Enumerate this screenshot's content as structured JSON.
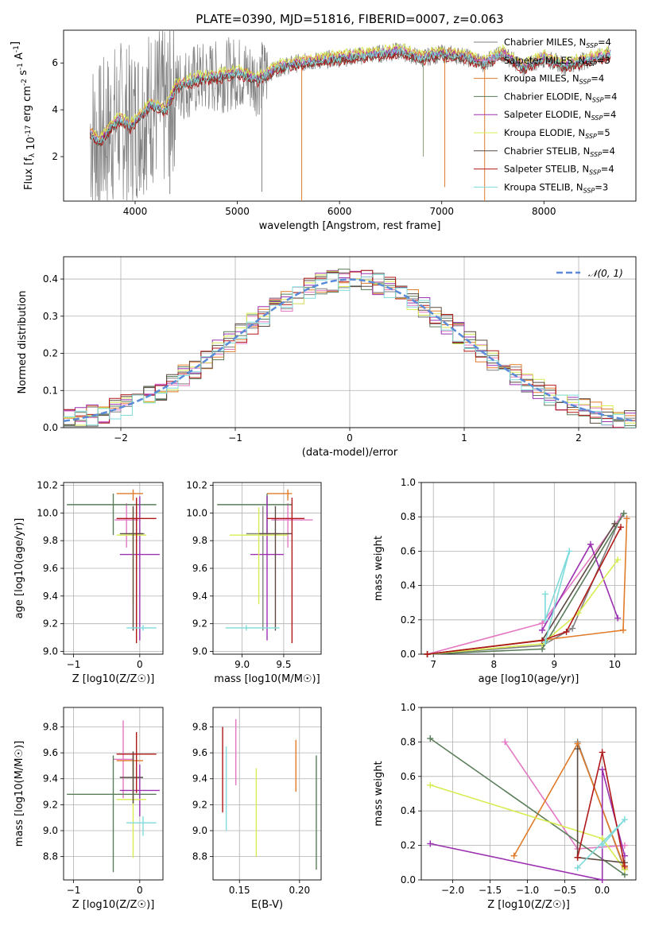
{
  "figure": {
    "title": "PLATE=0390, MJD=51816, FIBERID=0007, z=0.063"
  },
  "colors": {
    "Chabrier MILES": "#808080",
    "Salpeter MILES": "#e377c2",
    "Kroupa MILES": "#e07b2a",
    "Chabrier ELODIE": "#5a7d5a",
    "Salpeter ELODIE": "#9b30b0",
    "Kroupa ELODIE": "#d8ec52",
    "Chabrier STELIB": "#5d4a42",
    "Salpeter STELIB": "#b01818",
    "Kroupa STELIB": "#7fdada",
    "normal": "#5a8ad8"
  },
  "chart_data": [
    {
      "type": "line",
      "panel": "spectrum",
      "xlabel": "wavelength [Angstrom, rest frame]",
      "ylabel": "Flux [f_λ 10^-17 erg cm^-2 s^-1 A^-1]",
      "xlim": [
        3300,
        8900
      ],
      "ylim": [
        0.1,
        7.4
      ],
      "xticks": [
        "4000",
        "5000",
        "6000",
        "7000",
        "8000"
      ],
      "yticks": [
        "2",
        "4",
        "6"
      ],
      "legend_placement": "right",
      "legend": [
        {
          "name": "Chabrier MILES",
          "n": "4"
        },
        {
          "name": "Salpeter MILES",
          "n": "3"
        },
        {
          "name": "Kroupa MILES",
          "n": "4"
        },
        {
          "name": "Chabrier ELODIE",
          "n": "4"
        },
        {
          "name": "Salpeter ELODIE",
          "n": "4"
        },
        {
          "name": "Kroupa ELODIE",
          "n": "5"
        },
        {
          "name": "Chabrier STELIB",
          "n": "4"
        },
        {
          "name": "Salpeter STELIB",
          "n": "4"
        },
        {
          "name": "Kroupa STELIB",
          "n": "3"
        }
      ],
      "model_continuum": {
        "x": [
          3560,
          3650,
          3750,
          3850,
          3950,
          4050,
          4150,
          4300,
          4400,
          4600,
          4800,
          5000,
          5200,
          5400,
          5600,
          5800,
          6000,
          6200,
          6400,
          6600,
          6800,
          7000,
          7200,
          7400,
          7600,
          7800,
          8000,
          8200,
          8400,
          8500,
          8600,
          8650
        ],
        "y": [
          3.0,
          2.6,
          3.2,
          3.6,
          3.3,
          3.7,
          4.2,
          4.0,
          5.0,
          5.3,
          5.4,
          5.6,
          5.3,
          5.8,
          6.0,
          6.1,
          6.2,
          6.3,
          6.4,
          6.5,
          6.2,
          6.4,
          6.3,
          6.0,
          6.4,
          5.8,
          6.2,
          5.9,
          6.1,
          6.2,
          6.3,
          6.4
        ]
      },
      "data_spikes": {
        "x": [
          4340,
          5240,
          5630,
          6820,
          7030,
          7420
        ],
        "y": [
          0.4,
          0.5,
          0.0,
          2.0,
          0.7,
          0.0
        ]
      }
    },
    {
      "type": "step",
      "panel": "residual histogram",
      "xlabel": "(data-model)/error",
      "ylabel": "Normed distribution",
      "xlim": [
        -2.5,
        2.5
      ],
      "ylim": [
        0,
        0.46
      ],
      "xticks": [
        "−2",
        "−1",
        "0",
        "1",
        "2"
      ],
      "yticks": [
        "0.0",
        "0.1",
        "0.2",
        "0.3",
        "0.4"
      ],
      "legend": [
        "𝒩(0, 1)"
      ],
      "bin_width": 0.1
    },
    {
      "type": "scatter",
      "panel": "age vs Z",
      "xlabel": "Z [log10(Z/Z☉)]",
      "ylabel": "age [log10(age/yr)]",
      "xlim": [
        -1.15,
        0.35
      ],
      "ylim": [
        8.98,
        10.22
      ],
      "xticks": [
        "−1",
        "0"
      ],
      "yticks": [
        "9.0",
        "9.2",
        "9.4",
        "9.6",
        "9.8",
        "10.0",
        "10.2"
      ],
      "points": [
        {
          "model": "Chabrier MILES",
          "x": -0.05,
          "y": 9.85,
          "xerr": [
            0.12,
            0.12
          ],
          "yerr": [
            0.7,
            0.2
          ]
        },
        {
          "model": "Salpeter MILES",
          "x": -0.2,
          "y": 9.95,
          "xerr": [
            0.18,
            0.18
          ],
          "yerr": [
            0.2,
            0.12
          ]
        },
        {
          "model": "Kroupa MILES",
          "x": -0.1,
          "y": 10.14,
          "xerr": [
            0.25,
            0.15
          ],
          "yerr": [
            0.05,
            0.03
          ]
        },
        {
          "model": "Chabrier ELODIE",
          "x": -0.4,
          "y": 10.06,
          "xerr": [
            0.7,
            0.65
          ],
          "yerr": [
            0.22,
            0.08
          ]
        },
        {
          "model": "Salpeter ELODIE",
          "x": 0.0,
          "y": 9.7,
          "xerr": [
            0.3,
            0.3
          ],
          "yerr": [
            0.62,
            0.42
          ]
        },
        {
          "model": "Kroupa ELODIE",
          "x": -0.1,
          "y": 9.84,
          "xerr": [
            0.25,
            0.2
          ],
          "yerr": [
            0.5,
            0.2
          ]
        },
        {
          "model": "Chabrier STELIB",
          "x": -0.1,
          "y": 9.85,
          "xerr": [
            0.2,
            0.15
          ],
          "yerr": [
            0.7,
            0.2
          ]
        },
        {
          "model": "Salpeter STELIB",
          "x": -0.05,
          "y": 9.96,
          "xerr": [
            0.3,
            0.3
          ],
          "yerr": [
            0.9,
            0.15
          ]
        },
        {
          "model": "Kroupa STELIB",
          "x": 0.05,
          "y": 9.17,
          "xerr": [
            0.25,
            0.2
          ],
          "yerr": [
            0.02,
            0.02
          ]
        }
      ]
    },
    {
      "type": "scatter",
      "panel": "age vs mass",
      "xlabel": "mass [log10(M/M☉)]",
      "ylabel": "",
      "xlim": [
        8.65,
        9.95
      ],
      "ylim": [
        8.98,
        10.22
      ],
      "xticks": [
        "9.0",
        "9.5"
      ],
      "yticks": [
        "9.0",
        "9.2",
        "9.4",
        "9.6",
        "9.8",
        "10.0",
        "10.2"
      ],
      "points": [
        {
          "model": "Chabrier MILES",
          "x": 9.25,
          "y": 9.85,
          "xerr": [
            0.2,
            0.2
          ],
          "yerr": [
            0.7,
            0.2
          ]
        },
        {
          "model": "Salpeter MILES",
          "x": 9.55,
          "y": 9.95,
          "xerr": [
            0.2,
            0.3
          ],
          "yerr": [
            0.2,
            0.12
          ]
        },
        {
          "model": "Kroupa MILES",
          "x": 9.55,
          "y": 10.14,
          "xerr": [
            0.25,
            0.05
          ],
          "yerr": [
            0.05,
            0.03
          ]
        },
        {
          "model": "Chabrier ELODIE",
          "x": 9.3,
          "y": 10.06,
          "xerr": [
            0.6,
            0.3
          ],
          "yerr": [
            0.22,
            0.08
          ]
        },
        {
          "model": "Salpeter ELODIE",
          "x": 9.3,
          "y": 9.7,
          "xerr": [
            0.2,
            0.2
          ],
          "yerr": [
            0.62,
            0.42
          ]
        },
        {
          "model": "Kroupa ELODIE",
          "x": 9.2,
          "y": 9.84,
          "xerr": [
            0.35,
            0.35
          ],
          "yerr": [
            0.5,
            0.2
          ]
        },
        {
          "model": "Chabrier STELIB",
          "x": 9.4,
          "y": 9.85,
          "xerr": [
            0.2,
            0.2
          ],
          "yerr": [
            0.7,
            0.2
          ]
        },
        {
          "model": "Salpeter STELIB",
          "x": 9.6,
          "y": 9.96,
          "xerr": [
            0.3,
            0.15
          ],
          "yerr": [
            0.9,
            0.15
          ]
        },
        {
          "model": "Kroupa STELIB",
          "x": 9.05,
          "y": 9.17,
          "xerr": [
            0.25,
            0.4
          ],
          "yerr": [
            0.02,
            0.02
          ]
        }
      ]
    },
    {
      "type": "line",
      "panel": "mass weight vs age",
      "xlabel": "age [log10(age/yr)]",
      "ylabel": "mass weight",
      "xlim": [
        6.8,
        10.35
      ],
      "ylim": [
        0,
        1
      ],
      "xticks": [
        "7",
        "8",
        "9",
        "10"
      ],
      "yticks": [
        "0.0",
        "0.2",
        "0.4",
        "0.6",
        "0.8",
        "1.0"
      ],
      "series": [
        {
          "model": "Chabrier MILES",
          "x": [
            6.9,
            8.8,
            9.3,
            10.1
          ],
          "y": [
            0.0,
            0.05,
            0.15,
            0.8
          ]
        },
        {
          "model": "Salpeter MILES",
          "x": [
            6.9,
            8.8,
            10.1
          ],
          "y": [
            0.0,
            0.18,
            0.8
          ]
        },
        {
          "model": "Kroupa MILES",
          "x": [
            6.9,
            10.14,
            10.2
          ],
          "y": [
            0.0,
            0.14,
            0.79
          ]
        },
        {
          "model": "Chabrier ELODIE",
          "x": [
            6.9,
            8.8,
            10.15
          ],
          "y": [
            0.0,
            0.03,
            0.82
          ]
        },
        {
          "model": "Salpeter ELODIE",
          "x": [
            8.8,
            9.6,
            10.05
          ],
          "y": [
            0.14,
            0.64,
            0.21
          ]
        },
        {
          "model": "Kroupa ELODIE",
          "x": [
            6.9,
            8.8,
            9.4,
            10.05
          ],
          "y": [
            0.0,
            0.06,
            0.24,
            0.55
          ]
        },
        {
          "model": "Chabrier STELIB",
          "x": [
            6.9,
            8.8,
            10.0
          ],
          "y": [
            0.0,
            0.08,
            0.76
          ]
        },
        {
          "model": "Salpeter STELIB",
          "x": [
            6.9,
            8.8,
            9.2,
            10.1
          ],
          "y": [
            0.0,
            0.08,
            0.13,
            0.74
          ]
        },
        {
          "model": "Kroupa STELIB",
          "x": [
            8.85,
            9.25,
            8.85,
            8.85
          ],
          "y": [
            0.07,
            0.6,
            0.2,
            0.35
          ]
        }
      ]
    },
    {
      "type": "scatter",
      "panel": "mass vs Z",
      "xlabel": "Z [log10(Z/Z☉)]",
      "ylabel": "mass [log10(M/M☉)]",
      "xlim": [
        -1.15,
        0.35
      ],
      "ylim": [
        8.62,
        9.95
      ],
      "xticks": [
        "−1",
        "0"
      ],
      "yticks": [
        "8.8",
        "9.0",
        "9.2",
        "9.4",
        "9.6",
        "9.8"
      ],
      "points": [
        {
          "model": "Chabrier MILES",
          "x": -0.1,
          "y": 9.41,
          "xerr": [
            0.2,
            0.15
          ],
          "yerr": [
            0.2,
            0.2
          ]
        },
        {
          "model": "Salpeter MILES",
          "x": -0.25,
          "y": 9.55,
          "xerr": [
            0.15,
            0.15
          ],
          "yerr": [
            0.3,
            0.3
          ]
        },
        {
          "model": "Kroupa MILES",
          "x": -0.1,
          "y": 9.54,
          "xerr": [
            0.25,
            0.15
          ],
          "yerr": [
            0.1,
            0.05
          ]
        },
        {
          "model": "Chabrier ELODIE",
          "x": -0.4,
          "y": 9.28,
          "xerr": [
            0.7,
            0.65
          ],
          "yerr": [
            0.6,
            0.3
          ]
        },
        {
          "model": "Salpeter ELODIE",
          "x": 0.0,
          "y": 9.31,
          "xerr": [
            0.3,
            0.3
          ],
          "yerr": [
            0.2,
            0.2
          ]
        },
        {
          "model": "Kroupa ELODIE",
          "x": -0.1,
          "y": 9.24,
          "xerr": [
            0.25,
            0.2
          ],
          "yerr": [
            0.45,
            0.3
          ]
        },
        {
          "model": "Chabrier STELIB",
          "x": -0.1,
          "y": 9.41,
          "xerr": [
            0.2,
            0.15
          ],
          "yerr": [
            0.2,
            0.2
          ]
        },
        {
          "model": "Salpeter STELIB",
          "x": -0.05,
          "y": 9.59,
          "xerr": [
            0.3,
            0.3
          ],
          "yerr": [
            0.3,
            0.17
          ]
        },
        {
          "model": "Kroupa STELIB",
          "x": 0.05,
          "y": 9.06,
          "xerr": [
            0.25,
            0.2
          ],
          "yerr": [
            0.1,
            0.05
          ]
        }
      ]
    },
    {
      "type": "errorbar",
      "panel": "mass vs E(B-V)",
      "xlabel": "E(B-V)",
      "ylabel": "",
      "xlim": [
        0.128,
        0.218
      ],
      "ylim": [
        8.62,
        9.95
      ],
      "xticks": [
        "0.15",
        "0.20"
      ],
      "yticks": [
        "8.8",
        "9.0",
        "9.2",
        "9.4",
        "9.6",
        "9.8"
      ],
      "bars": [
        {
          "model": "Salpeter MILES",
          "x": 0.147,
          "low": 9.35,
          "high": 9.86
        },
        {
          "model": "Kroupa MILES",
          "x": 0.197,
          "low": 9.3,
          "high": 9.7
        },
        {
          "model": "Chabrier ELODIE",
          "x": 0.214,
          "low": 8.7,
          "high": 9.58
        },
        {
          "model": "Kroupa ELODIE",
          "x": 0.164,
          "low": 8.8,
          "high": 9.48
        },
        {
          "model": "Salpeter STELIB",
          "x": 0.136,
          "low": 9.14,
          "high": 9.8
        },
        {
          "model": "Kroupa STELIB",
          "x": 0.139,
          "low": 9.0,
          "high": 9.65
        }
      ]
    },
    {
      "type": "line",
      "panel": "mass weight vs Z",
      "xlabel": "Z [log10(Z/Z☉)]",
      "ylabel": "mass weight",
      "xlim": [
        -2.42,
        0.45
      ],
      "ylim": [
        0,
        1
      ],
      "xticks": [
        "−2.0",
        "−1.5",
        "−1.0",
        "−0.5",
        "0.0"
      ],
      "yticks": [
        "0.0",
        "0.2",
        "0.4",
        "0.6",
        "0.8",
        "1.0"
      ],
      "series": [
        {
          "model": "Chabrier MILES",
          "x": [
            -0.33,
            0.3
          ],
          "y": [
            0.8,
            0.06
          ]
        },
        {
          "model": "Salpeter MILES",
          "x": [
            -1.3,
            -0.33,
            0.3
          ],
          "y": [
            0.8,
            0.18,
            0.2
          ]
        },
        {
          "model": "Kroupa MILES",
          "x": [
            -1.18,
            -0.33,
            0.3
          ],
          "y": [
            0.14,
            0.79,
            0.07
          ]
        },
        {
          "model": "Chabrier ELODIE",
          "x": [
            -2.3,
            0.3
          ],
          "y": [
            0.82,
            0.03
          ]
        },
        {
          "model": "Salpeter ELODIE",
          "x": [
            -2.3,
            0.0,
            0.0,
            0.3
          ],
          "y": [
            0.21,
            0.0,
            0.64,
            0.14
          ]
        },
        {
          "model": "Kroupa ELODIE",
          "x": [
            -2.3,
            0.0,
            0.3
          ],
          "y": [
            0.55,
            0.24,
            0.06
          ]
        },
        {
          "model": "Chabrier STELIB",
          "x": [
            -0.33,
            -0.33,
            0.3
          ],
          "y": [
            0.76,
            0.13,
            0.1
          ]
        },
        {
          "model": "Salpeter STELIB",
          "x": [
            -0.33,
            0.0,
            0.3
          ],
          "y": [
            0.13,
            0.74,
            0.08
          ]
        },
        {
          "model": "Kroupa STELIB",
          "x": [
            -0.33,
            0.3,
            0.0
          ],
          "y": [
            0.07,
            0.35,
            0.2
          ]
        }
      ]
    }
  ]
}
